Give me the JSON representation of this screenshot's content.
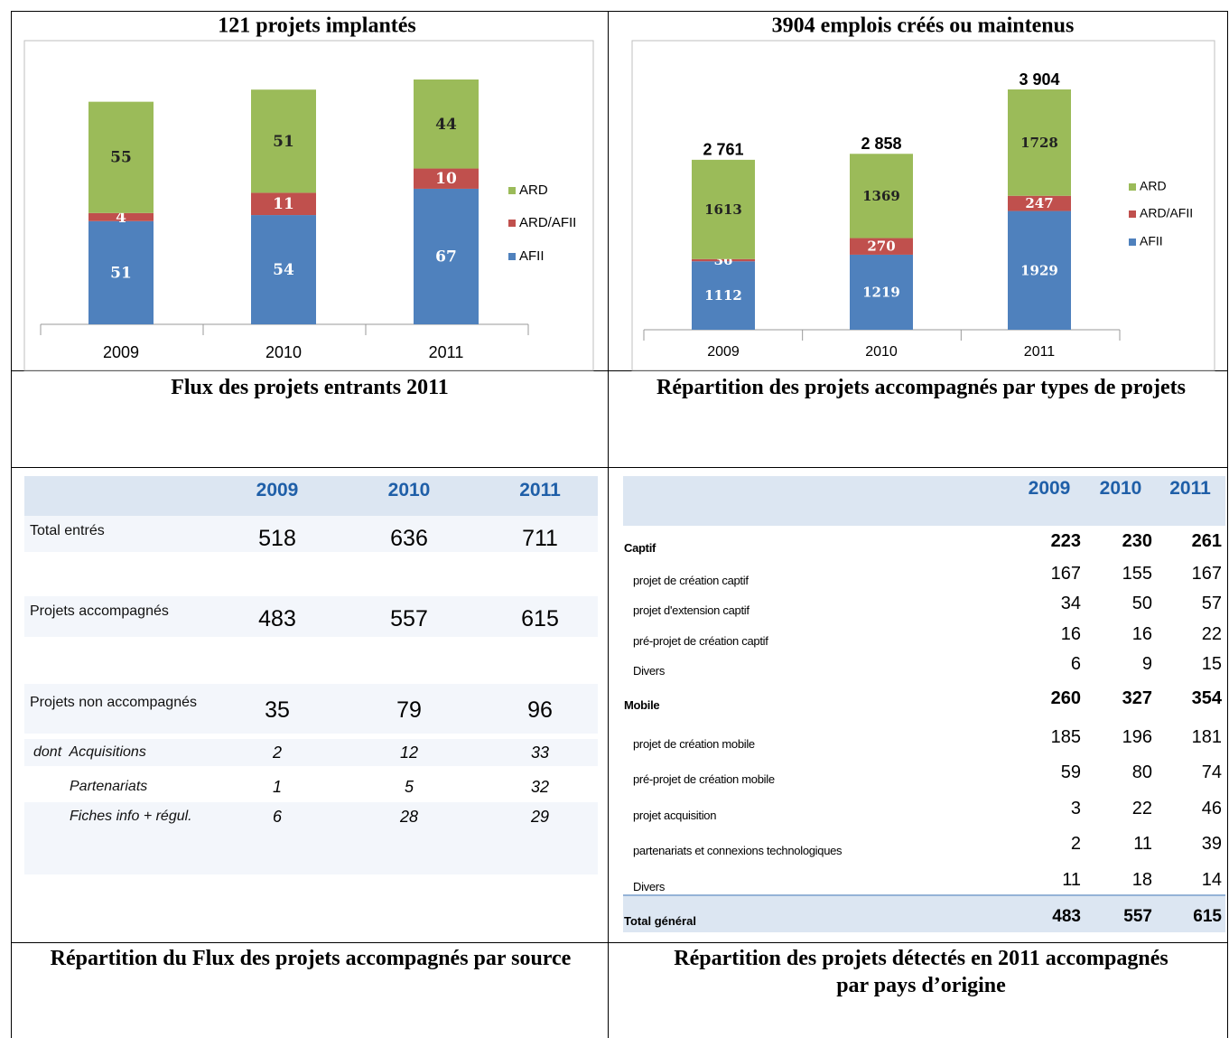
{
  "chart_data": [
    {
      "type": "bar",
      "stacked": true,
      "title": "121 projets implantés",
      "categories": [
        "2009",
        "2010",
        "2011"
      ],
      "series": [
        {
          "name": "AFII",
          "color": "#4f81bd",
          "values": [
            51,
            54,
            67
          ]
        },
        {
          "name": "ARD/AFII",
          "color": "#c0504d",
          "values": [
            4,
            11,
            10
          ]
        },
        {
          "name": "ARD",
          "color": "#9bbb59",
          "values": [
            55,
            51,
            44
          ]
        }
      ],
      "legend": "right"
    },
    {
      "type": "bar",
      "stacked": true,
      "title": "3904 emplois créés ou maintenus",
      "categories": [
        "2009",
        "2010",
        "2011"
      ],
      "series": [
        {
          "name": "AFII",
          "color": "#4f81bd",
          "values": [
            1112,
            1219,
            1929
          ]
        },
        {
          "name": "ARD/AFII",
          "color": "#c0504d",
          "values": [
            36,
            270,
            247
          ]
        },
        {
          "name": "ARD",
          "color": "#9bbb59",
          "values": [
            1613,
            1369,
            1728
          ]
        }
      ],
      "totals": [
        2761,
        2858,
        3904
      ],
      "total_labels": [
        "2 761",
        "2 858",
        "3 904"
      ],
      "legend": "right"
    }
  ],
  "headings": [
    "Flux des projets entrants 2011",
    "Répartition des projets accompagnés par types de projets",
    "Répartition du Flux des projets accompagnés par source",
    "Répartition des projets  détectés en 2011 accompagnés par pays d’origine"
  ],
  "tables": [
    {
      "columns": [
        "2009",
        "2010",
        "2011"
      ],
      "rows": [
        {
          "label": "Total entrés",
          "values": [
            518,
            636,
            711
          ]
        },
        {
          "label": "Projets accompagnés",
          "values": [
            483,
            557,
            615
          ]
        },
        {
          "label": "Projets non accompagnés",
          "values": [
            35,
            79,
            96
          ]
        },
        {
          "label": "dont  Acquisitions",
          "values": [
            2,
            12,
            33
          ]
        },
        {
          "label": "Partenariats",
          "values": [
            1,
            5,
            32
          ]
        },
        {
          "label": "Fiches info + régul.",
          "values": [
            6,
            28,
            29
          ]
        }
      ]
    },
    {
      "columns": [
        "2009",
        "2010",
        "2011"
      ],
      "rows": [
        {
          "label": "Captif",
          "values": [
            223,
            230,
            261
          ]
        },
        {
          "label": "projet de création captif",
          "values": [
            167,
            155,
            167
          ]
        },
        {
          "label": "projet d'extension captif",
          "values": [
            34,
            50,
            57
          ]
        },
        {
          "label": "pré-projet de création captif",
          "values": [
            16,
            16,
            22
          ]
        },
        {
          "label": "Divers",
          "values": [
            6,
            9,
            15
          ]
        },
        {
          "label": "Mobile",
          "values": [
            260,
            327,
            354
          ]
        },
        {
          "label": "projet de création mobile",
          "values": [
            185,
            196,
            181
          ]
        },
        {
          "label": "pré-projet de création mobile",
          "values": [
            59,
            80,
            74
          ]
        },
        {
          "label": "projet acquisition",
          "values": [
            3,
            22,
            46
          ]
        },
        {
          "label": "partenariats et connexions technologiques",
          "values": [
            2,
            11,
            39
          ]
        },
        {
          "label": "Divers",
          "values": [
            11,
            18,
            14
          ]
        }
      ],
      "total": {
        "label": "Total général",
        "values": [
          483,
          557,
          615
        ]
      }
    }
  ]
}
